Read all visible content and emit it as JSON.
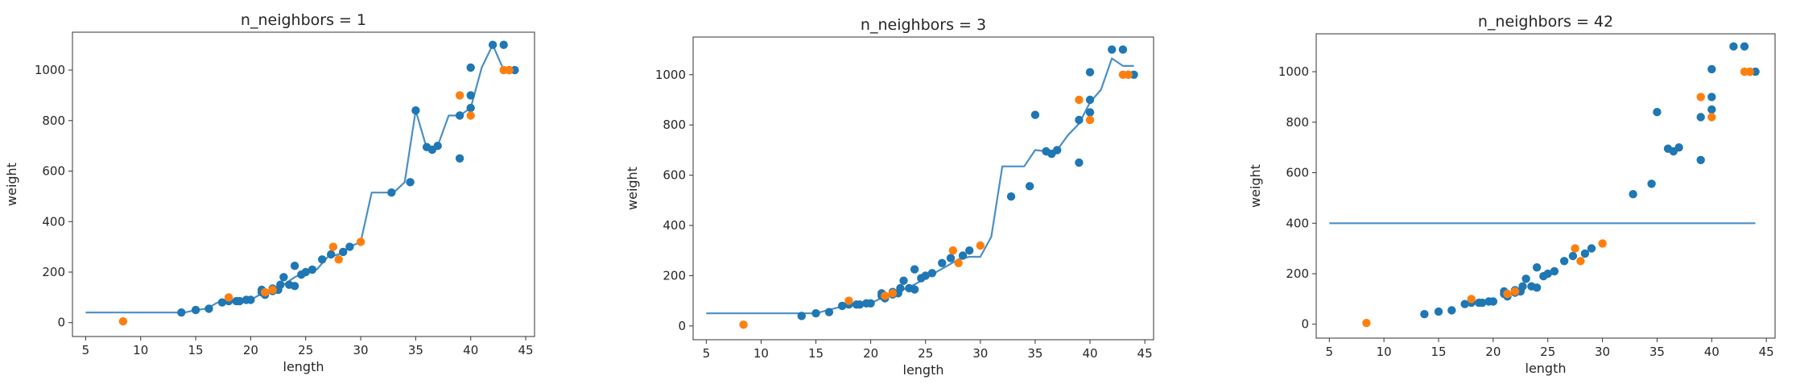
{
  "colors": {
    "train": "#1f77b4",
    "test": "#ff7f0e",
    "prediction": "#4a8fc6",
    "axes": "#333333"
  },
  "chart_data": [
    {
      "type": "scatter",
      "title": "n_neighbors = 1",
      "xlabel": "length",
      "ylabel": "weight",
      "xlim": [
        3.8,
        45.8
      ],
      "ylim": [
        -55,
        1150
      ],
      "xticks": [
        5,
        10,
        15,
        20,
        25,
        30,
        35,
        40,
        45
      ],
      "yticks": [
        0,
        200,
        400,
        600,
        800,
        1000
      ],
      "grid": false,
      "series": [
        {
          "kind": "points",
          "colorKey": "train",
          "x": [
            13.7,
            15.0,
            16.2,
            17.4,
            18.0,
            18.7,
            19.0,
            19.6,
            20.0,
            21.0,
            21.0,
            21.3,
            22.0,
            22.0,
            22.5,
            22.7,
            23.0,
            23.5,
            24.0,
            24.0,
            24.6,
            25.0,
            25.6,
            26.5,
            27.3,
            28.4,
            29.0,
            32.8,
            34.5,
            35.0,
            36.0,
            36.5,
            37.0,
            39.0,
            39.0,
            40.0,
            40.0,
            40.0,
            42.0,
            43.0,
            43.5,
            44.0
          ],
          "y": [
            40,
            50,
            55,
            80,
            85,
            85,
            85,
            90,
            90,
            120,
            130,
            110,
            135,
            125,
            130,
            150,
            180,
            150,
            225,
            145,
            190,
            200,
            210,
            250,
            270,
            280,
            300,
            515,
            556,
            840,
            695,
            685,
            700,
            650,
            820,
            850,
            900,
            1010,
            1100,
            1100,
            1000,
            1000
          ]
        },
        {
          "kind": "points",
          "colorKey": "test",
          "x": [
            8.4,
            18.0,
            21.3,
            22.0,
            27.5,
            28.0,
            30.0,
            39.0,
            40.0,
            43.0,
            43.5
          ],
          "y": [
            5,
            100,
            120,
            130,
            300,
            250,
            320,
            900,
            820,
            1000,
            1000
          ]
        },
        {
          "kind": "line",
          "colorKey": "prediction",
          "x": [
            5,
            13,
            14,
            15,
            16,
            17,
            18,
            19,
            20,
            21,
            22,
            23,
            24,
            25,
            26,
            27,
            28,
            29,
            30,
            31,
            32,
            33,
            34,
            35,
            36,
            37,
            38,
            39,
            40,
            41,
            42,
            43,
            44
          ],
          "y": [
            40,
            40,
            40,
            50,
            55,
            80,
            85,
            85,
            90,
            115,
            130,
            150,
            180,
            200,
            210,
            260,
            270,
            300,
            320,
            515,
            515,
            515,
            556,
            840,
            690,
            700,
            820,
            820,
            850,
            1010,
            1100,
            1000,
            1000
          ]
        }
      ]
    },
    {
      "type": "scatter",
      "title": "n_neighbors = 3",
      "xlabel": "length",
      "ylabel": "weight",
      "xlim": [
        3.8,
        45.8
      ],
      "ylim": [
        -55,
        1150
      ],
      "xticks": [
        5,
        10,
        15,
        20,
        25,
        30,
        35,
        40,
        45
      ],
      "yticks": [
        0,
        200,
        400,
        600,
        800,
        1000
      ],
      "grid": false,
      "series": [
        {
          "kind": "points",
          "colorKey": "train",
          "x": [
            13.7,
            15.0,
            16.2,
            17.4,
            18.0,
            18.7,
            19.0,
            19.6,
            20.0,
            21.0,
            21.0,
            21.3,
            22.0,
            22.0,
            22.5,
            22.7,
            23.0,
            23.5,
            24.0,
            24.0,
            24.6,
            25.0,
            25.6,
            26.5,
            27.3,
            28.4,
            29.0,
            32.8,
            34.5,
            35.0,
            36.0,
            36.5,
            37.0,
            39.0,
            39.0,
            40.0,
            40.0,
            40.0,
            42.0,
            43.0,
            43.5,
            44.0
          ],
          "y": [
            40,
            50,
            55,
            80,
            85,
            85,
            85,
            90,
            90,
            120,
            130,
            110,
            135,
            125,
            130,
            150,
            180,
            150,
            225,
            145,
            190,
            200,
            210,
            250,
            270,
            280,
            300,
            515,
            556,
            840,
            695,
            685,
            700,
            650,
            820,
            850,
            900,
            1010,
            1100,
            1100,
            1000,
            1000
          ]
        },
        {
          "kind": "points",
          "colorKey": "test",
          "x": [
            8.4,
            18.0,
            21.3,
            22.0,
            27.5,
            28.0,
            30.0,
            39.0,
            40.0,
            43.0,
            43.5
          ],
          "y": [
            5,
            100,
            120,
            130,
            300,
            250,
            320,
            900,
            820,
            1000,
            1000
          ]
        },
        {
          "kind": "line",
          "colorKey": "prediction",
          "x": [
            5,
            14,
            15,
            16,
            17,
            18,
            19,
            20,
            21,
            22,
            23,
            24,
            25,
            26,
            27,
            28,
            29,
            30,
            31,
            32,
            33,
            34,
            35,
            36,
            37,
            38,
            39,
            40,
            41,
            42,
            43,
            44
          ],
          "y": [
            50,
            50,
            50,
            62,
            73,
            83,
            87,
            90,
            112,
            130,
            145,
            165,
            190,
            215,
            240,
            265,
            275,
            275,
            355,
            635,
            635,
            635,
            700,
            695,
            700,
            760,
            805,
            890,
            940,
            1065,
            1035,
            1035
          ]
        }
      ]
    },
    {
      "type": "scatter",
      "title": "n_neighbors = 42",
      "xlabel": "length",
      "ylabel": "weight",
      "xlim": [
        3.8,
        45.8
      ],
      "ylim": [
        -55,
        1150
      ],
      "xticks": [
        5,
        10,
        15,
        20,
        25,
        30,
        35,
        40,
        45
      ],
      "yticks": [
        0,
        200,
        400,
        600,
        800,
        1000
      ],
      "grid": false,
      "series": [
        {
          "kind": "points",
          "colorKey": "train",
          "x": [
            13.7,
            15.0,
            16.2,
            17.4,
            18.0,
            18.7,
            19.0,
            19.6,
            20.0,
            21.0,
            21.0,
            21.3,
            22.0,
            22.0,
            22.5,
            22.7,
            23.0,
            23.5,
            24.0,
            24.0,
            24.6,
            25.0,
            25.6,
            26.5,
            27.3,
            28.4,
            29.0,
            32.8,
            34.5,
            35.0,
            36.0,
            36.5,
            37.0,
            39.0,
            39.0,
            40.0,
            40.0,
            40.0,
            42.0,
            43.0,
            43.5,
            44.0
          ],
          "y": [
            40,
            50,
            55,
            80,
            85,
            85,
            85,
            90,
            90,
            120,
            130,
            110,
            135,
            125,
            130,
            150,
            180,
            150,
            225,
            145,
            190,
            200,
            210,
            250,
            270,
            280,
            300,
            515,
            556,
            840,
            695,
            685,
            700,
            650,
            820,
            850,
            900,
            1010,
            1100,
            1100,
            1000,
            1000
          ]
        },
        {
          "kind": "points",
          "colorKey": "test",
          "x": [
            8.4,
            18.0,
            21.3,
            22.0,
            27.5,
            28.0,
            30.0,
            39.0,
            40.0,
            43.0,
            43.5
          ],
          "y": [
            5,
            100,
            120,
            130,
            300,
            250,
            320,
            900,
            820,
            1000,
            1000
          ]
        },
        {
          "kind": "line",
          "colorKey": "prediction",
          "x": [
            5,
            44
          ],
          "y": [
            400,
            400
          ]
        }
      ]
    }
  ]
}
